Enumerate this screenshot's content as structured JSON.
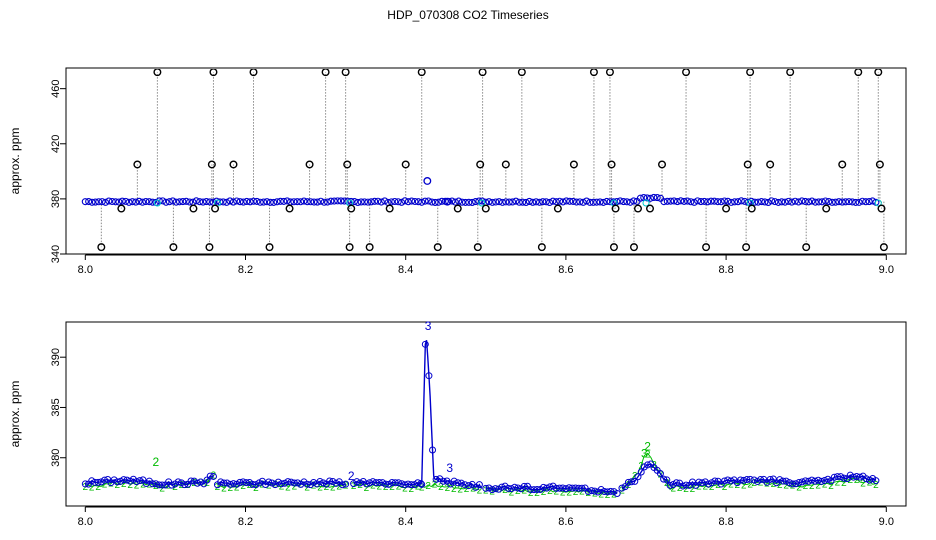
{
  "title": "HDP_070308  CO2 Timeseries",
  "colors": {
    "frame": "#000000",
    "spikes": "#8a8a8a",
    "black_points": "#000000",
    "blue": "#0000cc",
    "green": "#00bb00",
    "cyan": "#00cccc"
  },
  "chart_data": [
    {
      "type": "scatter",
      "title": "",
      "xlabel": "",
      "ylabel": "approx. ppm",
      "xlim": [
        8.0,
        9.0
      ],
      "ylim": [
        340,
        475
      ],
      "xticks": [
        8.0,
        8.2,
        8.4,
        8.6,
        8.8,
        9.0
      ],
      "xtick_labels": [
        "8.0",
        "8.2",
        "8.4",
        "8.6",
        "8.8",
        "9.0"
      ],
      "yticks": [
        340,
        380,
        420,
        460
      ],
      "ytick_labels": [
        "340",
        "380",
        "420",
        "460"
      ],
      "baseline_ppm": 378,
      "series": [
        {
          "marker": "open-circle",
          "color": "blue",
          "style": "dense baseline points",
          "x_start": 8.0,
          "x_end": 8.99
        },
        {
          "marker": "open-circle",
          "color": "black",
          "style": "outlier points with dotted drop lines",
          "points": [
            [
              8.02,
              345
            ],
            [
              8.045,
              373
            ],
            [
              8.065,
              405
            ],
            [
              8.09,
              472
            ],
            [
              8.11,
              345
            ],
            [
              8.135,
              373
            ],
            [
              8.155,
              345
            ],
            [
              8.158,
              405
            ],
            [
              8.16,
              472
            ],
            [
              8.162,
              373
            ],
            [
              8.185,
              405
            ],
            [
              8.21,
              472
            ],
            [
              8.23,
              345
            ],
            [
              8.255,
              373
            ],
            [
              8.28,
              405
            ],
            [
              8.3,
              472
            ],
            [
              8.325,
              472
            ],
            [
              8.327,
              405
            ],
            [
              8.33,
              345
            ],
            [
              8.332,
              373
            ],
            [
              8.355,
              345
            ],
            [
              8.38,
              373
            ],
            [
              8.4,
              405
            ],
            [
              8.42,
              472
            ],
            [
              8.44,
              345
            ],
            [
              8.465,
              373
            ],
            [
              8.49,
              345
            ],
            [
              8.493,
              405
            ],
            [
              8.496,
              472
            ],
            [
              8.5,
              373
            ],
            [
              8.525,
              405
            ],
            [
              8.545,
              472
            ],
            [
              8.57,
              345
            ],
            [
              8.59,
              373
            ],
            [
              8.61,
              405
            ],
            [
              8.635,
              472
            ],
            [
              8.655,
              472
            ],
            [
              8.657,
              405
            ],
            [
              8.66,
              345
            ],
            [
              8.662,
              373
            ],
            [
              8.685,
              345
            ],
            [
              8.69,
              373
            ],
            [
              8.705,
              373
            ],
            [
              8.72,
              405
            ],
            [
              8.75,
              472
            ],
            [
              8.775,
              345
            ],
            [
              8.8,
              373
            ],
            [
              8.825,
              345
            ],
            [
              8.827,
              405
            ],
            [
              8.83,
              472
            ],
            [
              8.832,
              373
            ],
            [
              8.855,
              405
            ],
            [
              8.88,
              472
            ],
            [
              8.9,
              345
            ],
            [
              8.925,
              373
            ],
            [
              8.945,
              405
            ],
            [
              8.965,
              472
            ],
            [
              8.99,
              472
            ],
            [
              8.992,
              405
            ],
            [
              8.994,
              373
            ],
            [
              8.997,
              345
            ]
          ]
        },
        {
          "marker": "open-circle",
          "color": "blue",
          "style": "isolated points",
          "points": [
            [
              8.427,
              393
            ],
            [
              8.452,
              378
            ]
          ]
        }
      ]
    },
    {
      "type": "line",
      "title": "",
      "xlabel": "",
      "ylabel": "approx. ppm",
      "xlim": [
        8.0,
        9.0
      ],
      "ylim": [
        375.2,
        393.5
      ],
      "xticks": [
        8.0,
        8.2,
        8.4,
        8.6,
        8.8,
        9.0
      ],
      "xtick_labels": [
        "8.0",
        "8.2",
        "8.4",
        "8.6",
        "8.8",
        "9.0"
      ],
      "yticks": [
        380,
        385,
        390
      ],
      "ytick_labels": [
        "380",
        "385",
        "390"
      ],
      "segments": [
        [
          8.0,
          8.16
        ],
        [
          8.165,
          8.325
        ],
        [
          8.335,
          8.42
        ],
        [
          8.42,
          8.495
        ],
        [
          8.5,
          8.665
        ],
        [
          8.67,
          8.83
        ],
        [
          8.835,
          8.99
        ]
      ],
      "series": [
        {
          "name": "",
          "color": "blue",
          "marker": "open-circle",
          "style": "line with circles",
          "profile": [
            [
              8.0,
              377.5
            ],
            [
              8.05,
              377.8
            ],
            [
              8.1,
              377.4
            ],
            [
              8.15,
              377.6
            ],
            [
              8.16,
              378.3
            ],
            [
              8.165,
              377.4
            ],
            [
              8.25,
              377.5
            ],
            [
              8.325,
              377.5
            ],
            [
              8.335,
              377.5
            ],
            [
              8.42,
              377.4
            ],
            [
              8.425,
              393
            ],
            [
              8.43,
              387
            ],
            [
              8.435,
              378
            ],
            [
              8.45,
              377.6
            ],
            [
              8.495,
              377.1
            ],
            [
              8.5,
              377.0
            ],
            [
              8.6,
              377.0
            ],
            [
              8.665,
              376.6
            ],
            [
              8.67,
              377.0
            ],
            [
              8.69,
              378
            ],
            [
              8.7,
              379.5
            ],
            [
              8.71,
              379.2
            ],
            [
              8.73,
              377.3
            ],
            [
              8.8,
              377.6
            ],
            [
              8.83,
              377.8
            ],
            [
              8.835,
              377.8
            ],
            [
              8.9,
              377.5
            ],
            [
              8.96,
              378.2
            ],
            [
              8.99,
              377.6
            ]
          ]
        },
        {
          "name": "",
          "color": "green",
          "marker": "digit 2",
          "style": "line with text markers",
          "profile": [
            [
              8.0,
              377.2
            ],
            [
              8.05,
              377.5
            ],
            [
              8.1,
              377.2
            ],
            [
              8.15,
              377.5
            ],
            [
              8.16,
              378.2
            ],
            [
              8.165,
              377.2
            ],
            [
              8.25,
              377.3
            ],
            [
              8.325,
              377.2
            ],
            [
              8.335,
              377.3
            ],
            [
              8.42,
              377.1
            ],
            [
              8.43,
              377.3
            ],
            [
              8.45,
              377.2
            ],
            [
              8.495,
              376.9
            ],
            [
              8.5,
              376.8
            ],
            [
              8.6,
              376.7
            ],
            [
              8.665,
              376.5
            ],
            [
              8.67,
              376.8
            ],
            [
              8.69,
              378.5
            ],
            [
              8.7,
              380.5
            ],
            [
              8.71,
              379.5
            ],
            [
              8.73,
              377.0
            ],
            [
              8.8,
              377.3
            ],
            [
              8.83,
              377.5
            ],
            [
              8.835,
              377.5
            ],
            [
              8.9,
              377.1
            ],
            [
              8.96,
              377.8
            ],
            [
              8.99,
              377.4
            ]
          ]
        }
      ],
      "labels": [
        {
          "text": "2",
          "x": 8.088,
          "y": 379.2,
          "color": "green"
        },
        {
          "text": "3",
          "x": 8.428,
          "y": 392.7,
          "color": "blue"
        },
        {
          "text": "3",
          "x": 8.455,
          "y": 378.6,
          "color": "blue"
        },
        {
          "text": "2",
          "x": 8.332,
          "y": 377.8,
          "color": "blue"
        },
        {
          "text": "2",
          "x": 8.702,
          "y": 380.7,
          "color": "green"
        },
        {
          "text": "3",
          "x": 8.698,
          "y": 380.0,
          "color": "green"
        }
      ]
    }
  ]
}
